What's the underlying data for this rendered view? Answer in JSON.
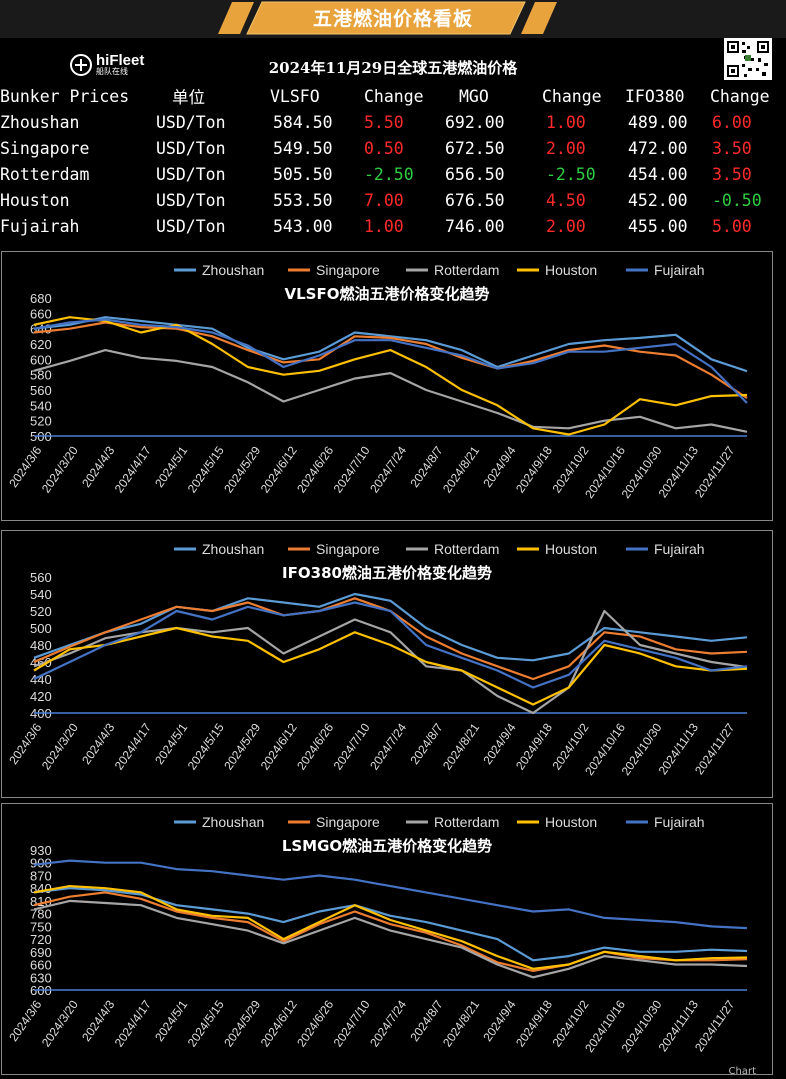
{
  "banner": {
    "title": "五港燃油价格看板",
    "color": "#e8a33d"
  },
  "logo": {
    "name": "hiFleet",
    "sub": "船队在线"
  },
  "header": {
    "date_title": "2024年11月29日全球五港燃油价格"
  },
  "table": {
    "columns": [
      "Bunker Prices",
      "单位",
      "VLSFO",
      "Change",
      "MGO",
      "Change",
      "IFO380",
      "Change"
    ],
    "rows": [
      {
        "port": "Zhoushan",
        "unit": "USD/Ton",
        "vlsfo": "584.50",
        "vlsfo_chg": "5.50",
        "mgo": "692.00",
        "mgo_chg": "1.00",
        "ifo": "489.00",
        "ifo_chg": "6.00"
      },
      {
        "port": "Singapore",
        "unit": "USD/Ton",
        "vlsfo": "549.50",
        "vlsfo_chg": "0.50",
        "mgo": "672.50",
        "mgo_chg": "2.00",
        "ifo": "472.00",
        "ifo_chg": "3.50"
      },
      {
        "port": "Rotterdam",
        "unit": "USD/Ton",
        "vlsfo": "505.50",
        "vlsfo_chg": "-2.50",
        "mgo": "656.50",
        "mgo_chg": "-2.50",
        "ifo": "454.00",
        "ifo_chg": "3.50"
      },
      {
        "port": "Houston",
        "unit": "USD/Ton",
        "vlsfo": "553.50",
        "vlsfo_chg": "7.00",
        "mgo": "676.50",
        "mgo_chg": "4.50",
        "ifo": "452.00",
        "ifo_chg": "-0.50"
      },
      {
        "port": "Fujairah",
        "unit": "USD/Ton",
        "vlsfo": "543.00",
        "vlsfo_chg": "1.00",
        "mgo": "746.00",
        "mgo_chg": "2.00",
        "ifo": "455.00",
        "ifo_chg": "5.00"
      }
    ]
  },
  "colors": {
    "up": "#ff2a2a",
    "down": "#2ecc40"
  },
  "footer": {
    "text": "Chart"
  },
  "chart_data": [
    {
      "type": "line",
      "title": "VLSFO燃油五港价格变化趋势",
      "xlabel": "",
      "ylabel": "",
      "ylim": [
        500,
        680
      ],
      "yticks": [
        500,
        520,
        540,
        560,
        580,
        600,
        620,
        640,
        660,
        680
      ],
      "x_ticks": [
        "2024/3/6",
        "2024/3/20",
        "2024/4/3",
        "2024/4/17",
        "2024/5/1",
        "2024/5/15",
        "2024/5/29",
        "2024/6/12",
        "2024/6/26",
        "2024/7/10",
        "2024/7/24",
        "2024/8/7",
        "2024/8/21",
        "2024/9/4",
        "2024/9/18",
        "2024/10/2",
        "2024/10/16",
        "2024/10/30",
        "2024/11/13",
        "2024/11/27"
      ],
      "legend_position": "top",
      "grid": false,
      "series": [
        {
          "name": "Zhoushan",
          "color": "#5b9bd5",
          "values": [
            640,
            645,
            655,
            650,
            645,
            640,
            615,
            600,
            610,
            635,
            630,
            625,
            612,
            590,
            605,
            620,
            625,
            628,
            632,
            600,
            584.5
          ]
        },
        {
          "name": "Singapore",
          "color": "#ed7d31",
          "values": [
            635,
            640,
            648,
            642,
            640,
            630,
            612,
            596,
            600,
            630,
            628,
            620,
            602,
            588,
            598,
            612,
            618,
            610,
            605,
            580,
            549.5
          ]
        },
        {
          "name": "Rotterdam",
          "color": "#a5a5a5",
          "values": [
            585,
            598,
            612,
            602,
            598,
            590,
            570,
            545,
            560,
            575,
            582,
            560,
            545,
            530,
            512,
            510,
            520,
            525,
            510,
            515,
            505.5
          ]
        },
        {
          "name": "Houston",
          "color": "#ffc000",
          "values": [
            645,
            655,
            650,
            635,
            645,
            620,
            590,
            580,
            585,
            600,
            612,
            590,
            560,
            540,
            510,
            502,
            515,
            548,
            540,
            552,
            553.5
          ]
        },
        {
          "name": "Fujairah",
          "color": "#4472c4",
          "values": [
            640,
            648,
            652,
            645,
            642,
            635,
            618,
            590,
            605,
            625,
            625,
            615,
            605,
            588,
            595,
            610,
            610,
            615,
            620,
            590,
            543
          ]
        }
      ]
    },
    {
      "type": "line",
      "title": "IFO380燃油五港价格变化趋势",
      "xlabel": "",
      "ylabel": "",
      "ylim": [
        400,
        560
      ],
      "yticks": [
        400,
        420,
        440,
        460,
        480,
        500,
        520,
        540,
        560
      ],
      "x_ticks": [
        "2024/3/6",
        "2024/3/20",
        "2024/4/3",
        "2024/4/17",
        "2024/5/1",
        "2024/5/15",
        "2024/5/29",
        "2024/6/12",
        "2024/6/26",
        "2024/7/10",
        "2024/7/24",
        "2024/8/7",
        "2024/8/21",
        "2024/9/4",
        "2024/9/18",
        "2024/10/2",
        "2024/10/16",
        "2024/10/30",
        "2024/11/13",
        "2024/11/27"
      ],
      "legend_position": "top",
      "grid": false,
      "series": [
        {
          "name": "Zhoushan",
          "color": "#5b9bd5",
          "values": [
            465,
            480,
            495,
            505,
            525,
            520,
            535,
            530,
            525,
            540,
            532,
            500,
            480,
            465,
            462,
            470,
            500,
            495,
            490,
            485,
            489
          ]
        },
        {
          "name": "Singapore",
          "color": "#ed7d31",
          "values": [
            460,
            478,
            495,
            510,
            525,
            520,
            530,
            515,
            520,
            535,
            520,
            490,
            470,
            455,
            440,
            455,
            495,
            490,
            475,
            470,
            472
          ]
        },
        {
          "name": "Rotterdam",
          "color": "#a5a5a5",
          "values": [
            455,
            470,
            488,
            495,
            500,
            495,
            500,
            470,
            490,
            510,
            495,
            455,
            450,
            420,
            400,
            430,
            520,
            480,
            470,
            460,
            454
          ]
        },
        {
          "name": "Houston",
          "color": "#ffc000",
          "values": [
            450,
            475,
            480,
            490,
            500,
            490,
            485,
            460,
            475,
            495,
            480,
            460,
            450,
            430,
            410,
            430,
            480,
            470,
            455,
            450,
            452
          ]
        },
        {
          "name": "Fujairah",
          "color": "#4472c4",
          "values": [
            440,
            460,
            480,
            495,
            520,
            510,
            525,
            515,
            520,
            530,
            520,
            480,
            465,
            450,
            430,
            445,
            485,
            475,
            465,
            450,
            455
          ]
        }
      ]
    },
    {
      "type": "line",
      "title": "LSMGO燃油五港价格变化趋势",
      "xlabel": "",
      "ylabel": "",
      "ylim": [
        600,
        930
      ],
      "yticks": [
        600,
        630,
        660,
        690,
        720,
        750,
        780,
        810,
        840,
        870,
        900,
        930
      ],
      "x_ticks": [
        "2024/3/6",
        "2024/3/20",
        "2024/4/3",
        "2024/4/17",
        "2024/5/1",
        "2024/5/15",
        "2024/5/29",
        "2024/6/12",
        "2024/6/26",
        "2024/7/10",
        "2024/7/24",
        "2024/8/7",
        "2024/8/21",
        "2024/9/4",
        "2024/9/18",
        "2024/10/2",
        "2024/10/16",
        "2024/10/30",
        "2024/11/13",
        "2024/11/27"
      ],
      "legend_position": "top",
      "grid": false,
      "series": [
        {
          "name": "Zhoushan",
          "color": "#5b9bd5",
          "values": [
            830,
            840,
            835,
            825,
            800,
            790,
            780,
            760,
            785,
            800,
            775,
            760,
            740,
            720,
            670,
            680,
            700,
            690,
            690,
            695,
            692
          ]
        },
        {
          "name": "Singapore",
          "color": "#ed7d31",
          "values": [
            800,
            820,
            830,
            815,
            785,
            770,
            760,
            715,
            755,
            785,
            755,
            735,
            705,
            665,
            645,
            660,
            690,
            675,
            670,
            670,
            672.5
          ]
        },
        {
          "name": "Rotterdam",
          "color": "#a5a5a5",
          "values": [
            790,
            810,
            805,
            800,
            770,
            755,
            740,
            710,
            740,
            770,
            740,
            720,
            700,
            660,
            630,
            650,
            680,
            670,
            660,
            660,
            656.5
          ]
        },
        {
          "name": "Houston",
          "color": "#ffc000",
          "values": [
            830,
            845,
            840,
            830,
            790,
            775,
            770,
            720,
            760,
            800,
            765,
            740,
            715,
            680,
            650,
            660,
            690,
            680,
            670,
            675,
            676.5
          ]
        },
        {
          "name": "Fujairah",
          "color": "#4472c4",
          "values": [
            895,
            905,
            900,
            900,
            885,
            880,
            870,
            860,
            870,
            860,
            845,
            830,
            815,
            800,
            785,
            790,
            770,
            765,
            760,
            750,
            746
          ]
        }
      ]
    }
  ]
}
